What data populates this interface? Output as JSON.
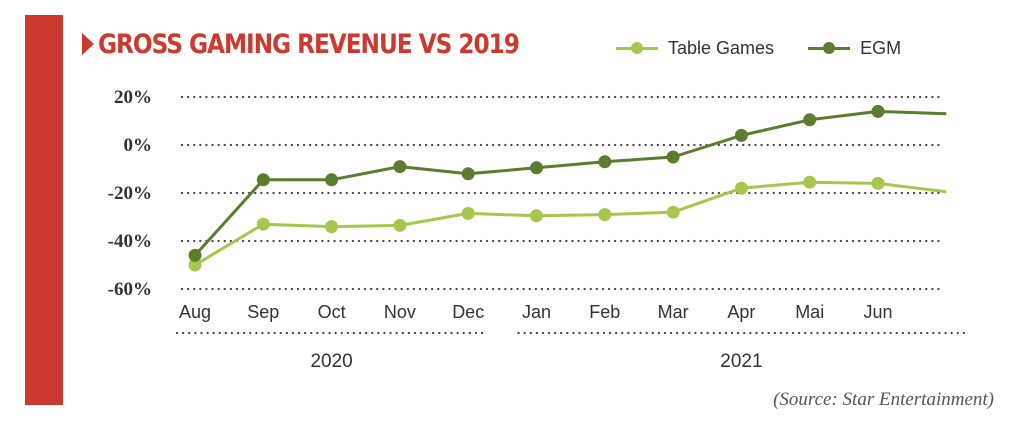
{
  "title": "GROSS GAMING REVENUE VS 2019",
  "source": "(Source: Star Entertainment)",
  "colors": {
    "accent": "#cc3a2f",
    "table_games": "#a6c64c",
    "egm": "#5a7d2e"
  },
  "legend": [
    {
      "name": "Table Games",
      "color": "#a6c64c"
    },
    {
      "name": "EGM",
      "color": "#5a7d2e"
    }
  ],
  "chart_data": {
    "type": "line",
    "title": "GROSS GAMING REVENUE VS 2019",
    "categories": [
      "Aug",
      "Sep",
      "Oct",
      "Nov",
      "Dec",
      "Jan",
      "Feb",
      "Mar",
      "Apr",
      "Mai",
      "Jun",
      ""
    ],
    "year_groups": [
      {
        "label": "2020",
        "from": 0,
        "to": 4
      },
      {
        "label": "2021",
        "from": 5,
        "to": 11
      }
    ],
    "yticks": [
      "20%",
      "0%",
      "-20%",
      "-40%",
      "-60%"
    ],
    "ytick_values": [
      20,
      0,
      -20,
      -40,
      -60
    ],
    "ylim": [
      -60,
      20
    ],
    "y_unit": "%",
    "grid": true,
    "grid_style": "dotted",
    "legend_position": "top-right",
    "series": [
      {
        "name": "Table Games",
        "color": "#a6c64c",
        "values": [
          -50,
          -33,
          -34,
          -33.5,
          -28.5,
          -29.5,
          -29,
          -28,
          -18,
          -15.5,
          -16,
          -19.5
        ]
      },
      {
        "name": "EGM",
        "color": "#5a7d2e",
        "values": [
          -46,
          -14.5,
          -14.5,
          -9,
          -12,
          -9.5,
          -7,
          -5,
          4,
          10.5,
          14,
          13
        ]
      }
    ]
  }
}
